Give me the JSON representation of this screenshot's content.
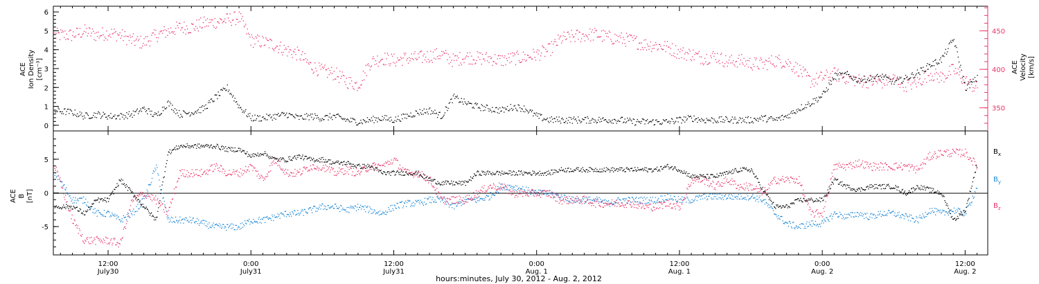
{
  "colors": {
    "black": "#000000",
    "pink": "#e8346a",
    "blue": "#1a86d6"
  },
  "xaxis": {
    "title": "hours:minutes, July 30, 2012 - Aug.  2, 2012",
    "range_hours": [
      7.4,
      85.9
    ],
    "ticks": [
      {
        "h": 12,
        "time": "12:00",
        "date": "July30"
      },
      {
        "h": 24,
        "time": "0:00",
        "date": "July31"
      },
      {
        "h": 36,
        "time": "12:00",
        "date": "July31"
      },
      {
        "h": 48,
        "time": "0:00",
        "date": "Aug.  1"
      },
      {
        "h": 60,
        "time": "12:00",
        "date": "Aug.  1"
      },
      {
        "h": 72,
        "time": "0:00",
        "date": "Aug.  2"
      },
      {
        "h": 84,
        "time": "12:00",
        "date": "Aug.  2"
      }
    ]
  },
  "panel_top": {
    "left_label": [
      "ACE",
      "Ion Density",
      "[cm⁻³]"
    ],
    "right_label": [
      "ACE",
      "Velocity",
      "[km/s]"
    ],
    "left_ticks": [
      "0",
      "1",
      "2",
      "3",
      "4",
      "5",
      "6"
    ],
    "right_ticks": [
      "350",
      "400",
      "450"
    ]
  },
  "panel_bottom": {
    "left_label": [
      "ACE",
      "B",
      "[nT]"
    ],
    "left_ticks": [
      "-5",
      "0",
      "5"
    ],
    "legend": [
      {
        "label": "B",
        "sub": "x",
        "color": "#000000"
      },
      {
        "label": "B",
        "sub": "y",
        "color": "#1a86d6"
      },
      {
        "label": "B",
        "sub": "z",
        "color": "#e8346a"
      }
    ]
  },
  "chart_data": [
    {
      "type": "scatter",
      "title": "",
      "xlabel": "hours:minutes, July 30, 2012 - Aug.  2, 2012",
      "series": [
        {
          "name": "Ion Density",
          "axis": "left",
          "unit": "cm^-3",
          "color": "#000000",
          "x": [
            7.5,
            9,
            10,
            11,
            12,
            13,
            14,
            15,
            16,
            17,
            18,
            19,
            20,
            21,
            22,
            23,
            24,
            25,
            26,
            27,
            28,
            29,
            30,
            31,
            32,
            33,
            34,
            35,
            36,
            37,
            38,
            39,
            40,
            41,
            42,
            43,
            44,
            45,
            46,
            47,
            48,
            49,
            50,
            51,
            52,
            53,
            54,
            55,
            56,
            57,
            58,
            59,
            60,
            61,
            62,
            63,
            64,
            65,
            66,
            67,
            68,
            69,
            70,
            71,
            72,
            73,
            74,
            75,
            76,
            77,
            78,
            79,
            80,
            81,
            82,
            83,
            84,
            85
          ],
          "y": [
            0.8,
            0.7,
            0.5,
            0.6,
            0.5,
            0.5,
            0.6,
            0.9,
            0.5,
            1.2,
            0.6,
            0.7,
            0.9,
            1.5,
            2.0,
            1.0,
            0.4,
            0.4,
            0.5,
            0.6,
            0.4,
            0.5,
            0.4,
            0.5,
            0.3,
            0.2,
            0.3,
            0.4,
            0.3,
            0.5,
            0.7,
            0.8,
            0.5,
            1.5,
            1.2,
            1.0,
            0.9,
            0.8,
            1.0,
            0.9,
            0.5,
            0.3,
            0.3,
            0.3,
            0.3,
            0.3,
            0.3,
            0.3,
            0.2,
            0.2,
            0.2,
            0.2,
            0.3,
            0.4,
            0.3,
            0.3,
            0.3,
            0.3,
            0.3,
            0.4,
            0.3,
            0.5,
            0.9,
            1.2,
            1.6,
            2.6,
            2.7,
            2.4,
            2.5,
            2.6,
            2.3,
            2.5,
            2.8,
            3.2,
            3.5,
            4.6,
            2.0,
            2.5
          ],
          "ylim": [
            -0.3,
            6.3
          ]
        },
        {
          "name": "Velocity",
          "axis": "right",
          "unit": "km/s",
          "color": "#e8346a",
          "x": [
            7.5,
            9,
            10,
            11,
            12,
            13,
            14,
            15,
            16,
            17,
            18,
            19,
            20,
            21,
            22,
            23,
            24,
            25,
            26,
            27,
            28,
            29,
            30,
            31,
            32,
            33,
            34,
            35,
            36,
            37,
            38,
            39,
            40,
            41,
            42,
            43,
            44,
            45,
            46,
            47,
            48,
            49,
            50,
            51,
            52,
            53,
            54,
            55,
            56,
            57,
            58,
            59,
            60,
            61,
            62,
            63,
            64,
            65,
            66,
            67,
            68,
            69,
            70,
            71,
            72,
            73,
            74,
            75,
            76,
            77,
            78,
            79,
            80,
            81,
            82,
            83,
            84,
            85
          ],
          "y": [
            445,
            445,
            450,
            445,
            448,
            445,
            438,
            435,
            445,
            450,
            455,
            455,
            460,
            462,
            465,
            468,
            438,
            436,
            432,
            425,
            420,
            405,
            398,
            395,
            385,
            380,
            410,
            415,
            412,
            415,
            415,
            418,
            420,
            412,
            417,
            415,
            415,
            412,
            415,
            416,
            420,
            425,
            440,
            443,
            445,
            446,
            442,
            440,
            438,
            433,
            432,
            429,
            422,
            420,
            415,
            418,
            410,
            412,
            408,
            407,
            412,
            410,
            400,
            385,
            390,
            394,
            390,
            386,
            385,
            384,
            388,
            380,
            384,
            395,
            390,
            400,
            385,
            375
          ],
          "ylim": [
            320,
            482
          ]
        }
      ]
    },
    {
      "type": "scatter",
      "title": "",
      "ylabel": "B [nT]",
      "ylim": [
        -9.2,
        9.2
      ],
      "series": [
        {
          "name": "Bx",
          "color": "#000000",
          "x": [
            7.5,
            9,
            10,
            11,
            12,
            13,
            14,
            15,
            16,
            17,
            18,
            19,
            20,
            21,
            22,
            23,
            24,
            25,
            26,
            27,
            28,
            29,
            30,
            31,
            32,
            33,
            34,
            35,
            36,
            37,
            38,
            39,
            40,
            41,
            42,
            43,
            44,
            45,
            46,
            47,
            48,
            49,
            50,
            51,
            52,
            53,
            54,
            55,
            56,
            57,
            58,
            59,
            60,
            61,
            62,
            63,
            64,
            65,
            66,
            67,
            68,
            69,
            70,
            71,
            72,
            73,
            74,
            75,
            76,
            77,
            78,
            79,
            80,
            81,
            82,
            83,
            84,
            85
          ],
          "y": [
            -2,
            -2,
            -3,
            -1,
            -1,
            2,
            0,
            -2,
            -4,
            6,
            7,
            7,
            7,
            7,
            6.5,
            6.5,
            5.5,
            6,
            5,
            5,
            5.5,
            5,
            5,
            4.5,
            4.5,
            4,
            4,
            3,
            3,
            3,
            3,
            2,
            1.5,
            1.5,
            1.5,
            3,
            3,
            3,
            3,
            3,
            3,
            3,
            3.5,
            3.5,
            3.5,
            3.5,
            3.5,
            3.5,
            3.5,
            3.5,
            3.5,
            4,
            3.5,
            2.5,
            2.5,
            2.5,
            3,
            3.5,
            3.5,
            0.5,
            -2,
            -2,
            -1,
            -1,
            -1,
            2,
            1,
            0.5,
            1,
            1,
            1,
            0,
            1,
            0.5,
            0,
            -4,
            -2.5,
            4.5
          ],
          "ylim": [
            -9.2,
            9.2
          ]
        },
        {
          "name": "By",
          "color": "#1a86d6",
          "x": [
            7.5,
            9,
            10,
            11,
            12,
            13,
            14,
            15,
            16,
            17,
            18,
            19,
            20,
            21,
            22,
            23,
            24,
            25,
            26,
            27,
            28,
            29,
            30,
            31,
            32,
            33,
            34,
            35,
            36,
            37,
            38,
            39,
            40,
            41,
            42,
            43,
            44,
            45,
            46,
            47,
            48,
            49,
            50,
            51,
            52,
            53,
            54,
            55,
            56,
            57,
            58,
            59,
            60,
            61,
            62,
            63,
            64,
            65,
            66,
            67,
            68,
            69,
            70,
            71,
            72,
            73,
            74,
            75,
            76,
            77,
            78,
            79,
            80,
            81,
            82,
            83,
            84,
            85
          ],
          "y": [
            3,
            -1,
            -1,
            -3,
            -3,
            -4,
            -3,
            -1,
            4,
            -4,
            -4,
            -4,
            -4.5,
            -5,
            -5,
            -5,
            -4,
            -4,
            -3.5,
            -3,
            -3,
            -2.5,
            -2,
            -2,
            -2.5,
            -2,
            -2.5,
            -3,
            -2,
            -1.5,
            -1.5,
            -1,
            -1,
            -2,
            -1,
            -1,
            -0.5,
            1,
            1,
            0.5,
            0,
            0,
            -0.5,
            -1,
            -1,
            -1,
            -1.5,
            -1,
            -1,
            -1,
            -1,
            -0.5,
            -1,
            -1,
            -0.5,
            -0.5,
            -0.5,
            -0.5,
            -0.5,
            -1,
            -3,
            -4.5,
            -5,
            -4.5,
            -4.5,
            -3,
            -3.5,
            -3,
            -3.5,
            -3,
            -3,
            -3.5,
            -4,
            -2.5,
            -3,
            -2.5,
            -3,
            1
          ],
          "ylim": [
            -9.2,
            9.2
          ]
        },
        {
          "name": "Bz",
          "color": "#e8346a",
          "x": [
            7.5,
            9,
            10,
            11,
            12,
            13,
            14,
            15,
            16,
            17,
            18,
            19,
            20,
            21,
            22,
            23,
            24,
            25,
            26,
            27,
            28,
            29,
            30,
            31,
            32,
            33,
            34,
            35,
            36,
            37,
            38,
            39,
            40,
            41,
            42,
            43,
            44,
            45,
            46,
            47,
            48,
            49,
            50,
            51,
            52,
            53,
            54,
            55,
            56,
            57,
            58,
            59,
            60,
            61,
            62,
            63,
            64,
            65,
            66,
            67,
            68,
            69,
            70,
            71,
            72,
            73,
            74,
            75,
            76,
            77,
            78,
            79,
            80,
            81,
            82,
            83,
            84,
            85
          ],
          "y": [
            4,
            -4,
            -7,
            -7,
            -7,
            -7.5,
            -1,
            0,
            -1,
            -3,
            3,
            3,
            3,
            4,
            3,
            3,
            4,
            2,
            5,
            3,
            3,
            4,
            4,
            3,
            3.5,
            3,
            4,
            4,
            5,
            3,
            3,
            2,
            -1,
            -1,
            -1,
            0,
            1,
            1,
            0,
            0,
            0,
            0,
            -1,
            -1,
            -1,
            -1.5,
            -1.5,
            -1.5,
            -1.5,
            -2,
            -2,
            -1.5,
            -2,
            2,
            2,
            1,
            2,
            1,
            1,
            0,
            2,
            2,
            2,
            -3,
            -3,
            4,
            4,
            4.5,
            4,
            4,
            4,
            4,
            3.5,
            5.5,
            6,
            6,
            6,
            4
          ],
          "ylim": [
            -9.2,
            9.2
          ]
        }
      ]
    }
  ]
}
